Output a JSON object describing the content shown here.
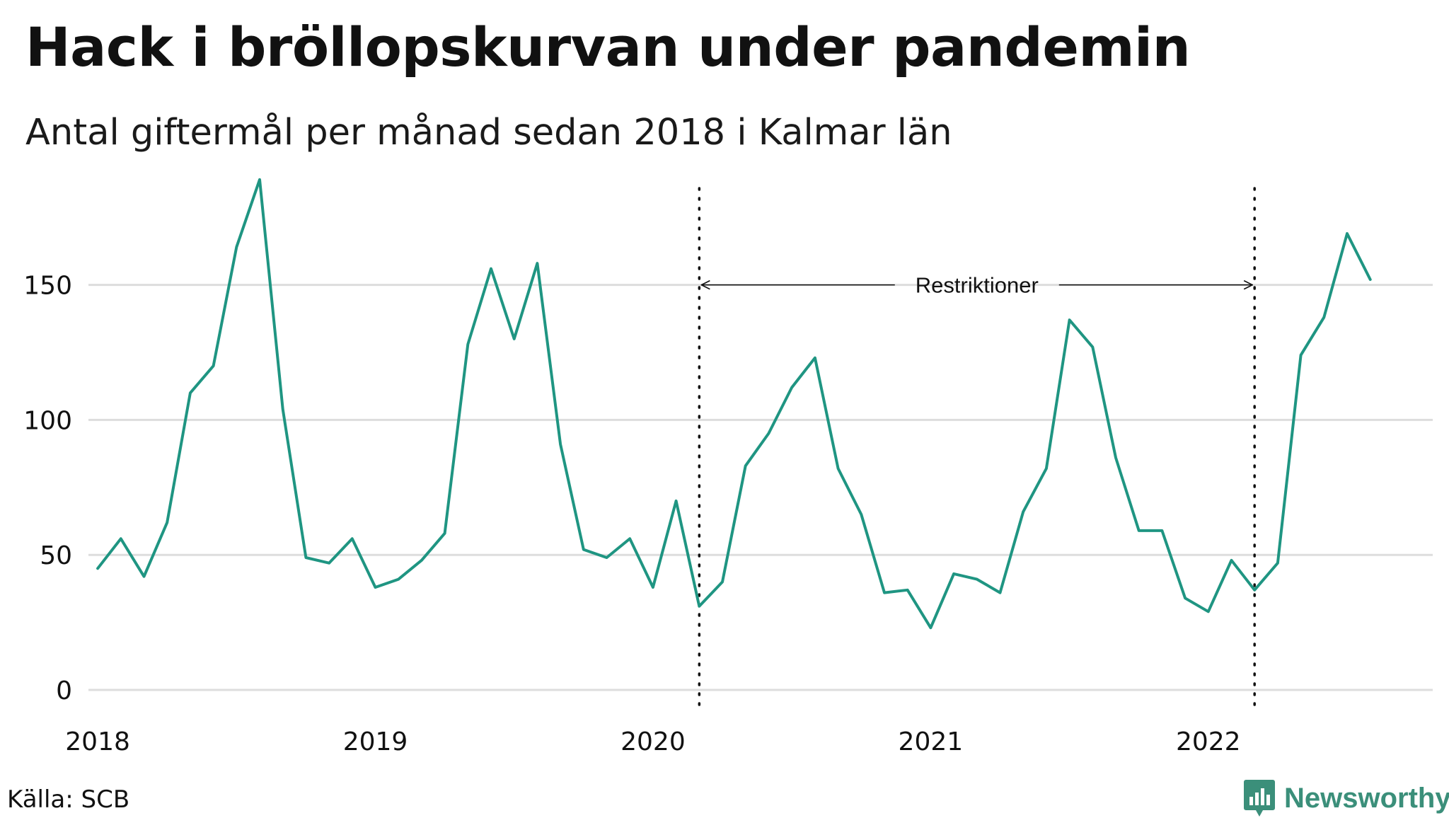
{
  "title": "Hack i bröllopskurvan under pandemin",
  "subtitle": "Antal giftermål per månad sedan 2018 i Kalmar län",
  "source": "Källa: SCB",
  "brand": {
    "name": "Newsworthy",
    "icon": "newsworthy-logo-icon"
  },
  "colors": {
    "line": "#1f9582",
    "grid": "#dddddd",
    "brand": "#3b8f7a"
  },
  "chart_data": {
    "type": "line",
    "title": "Hack i bröllopskurvan under pandemin",
    "subtitle": "Antal giftermål per månad sedan 2018 i Kalmar län",
    "xlabel": "",
    "ylabel": "",
    "ylim": [
      0,
      190
    ],
    "yticks": [
      0,
      50,
      100,
      150
    ],
    "grid": true,
    "x_start": "2018-01",
    "x_range_months": [
      -0.4,
      57.7
    ],
    "x_ticks": [
      {
        "label": "2018",
        "month_index": 0
      },
      {
        "label": "2019",
        "month_index": 12
      },
      {
        "label": "2020",
        "month_index": 24
      },
      {
        "label": "2021",
        "month_index": 36
      },
      {
        "label": "2022",
        "month_index": 48
      }
    ],
    "series": [
      {
        "name": "Giftermål",
        "values": [
          45,
          56,
          42,
          62,
          110,
          120,
          164,
          189,
          104,
          49,
          47,
          56,
          38,
          41,
          48,
          58,
          128,
          156,
          130,
          158,
          91,
          52,
          49,
          56,
          38,
          70,
          31,
          40,
          83,
          95,
          112,
          123,
          82,
          65,
          36,
          37,
          23,
          43,
          41,
          36,
          66,
          82,
          137,
          127,
          86,
          59,
          59,
          34,
          29,
          48,
          37,
          47,
          124,
          138,
          169,
          152
        ]
      }
    ],
    "annotation": {
      "label": "Restriktioner",
      "start_month_index": 26,
      "end_month_index": 50,
      "y_value": 150
    }
  }
}
